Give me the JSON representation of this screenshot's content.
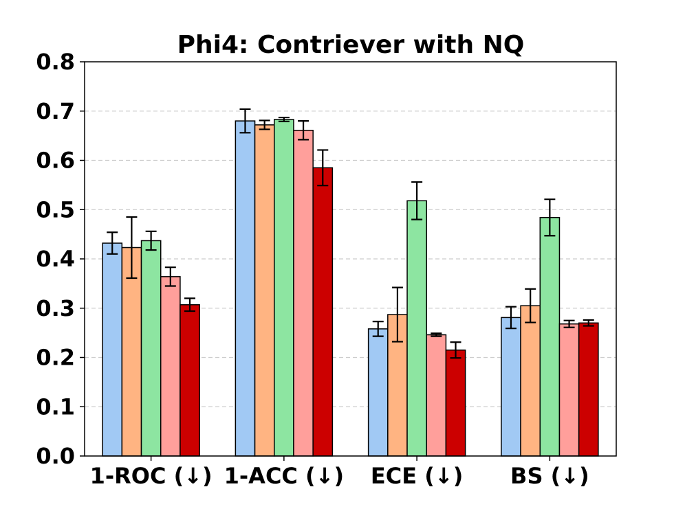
{
  "chart_data": {
    "type": "bar",
    "title": "Phi4: Contriever with NQ",
    "xlabel": "",
    "ylabel": "",
    "ylim": [
      0,
      0.8
    ],
    "yticks": [
      "0.0",
      "0.1",
      "0.2",
      "0.3",
      "0.4",
      "0.5",
      "0.6",
      "0.7",
      "0.8"
    ],
    "grid": true,
    "categories": [
      "1-ROC (↓)",
      "1-ACC (↓)",
      "ECE (↓)",
      "BS (↓)"
    ],
    "series": [
      {
        "color": "#a1c9f4",
        "values": [
          0.432,
          0.68,
          0.258,
          0.281
        ],
        "errors": [
          0.022,
          0.024,
          0.015,
          0.022
        ]
      },
      {
        "color": "#ffb482",
        "values": [
          0.423,
          0.672,
          0.287,
          0.305
        ],
        "errors": [
          0.062,
          0.009,
          0.055,
          0.034
        ]
      },
      {
        "color": "#8de5a1",
        "values": [
          0.437,
          0.683,
          0.518,
          0.484
        ],
        "errors": [
          0.019,
          0.004,
          0.038,
          0.037
        ]
      },
      {
        "color": "#ff9f9b",
        "values": [
          0.364,
          0.661,
          0.246,
          0.268
        ],
        "errors": [
          0.019,
          0.019,
          0.003,
          0.007
        ]
      },
      {
        "color": "#cc0000",
        "values": [
          0.307,
          0.585,
          0.215,
          0.27
        ],
        "errors": [
          0.013,
          0.036,
          0.016,
          0.006
        ]
      }
    ]
  }
}
